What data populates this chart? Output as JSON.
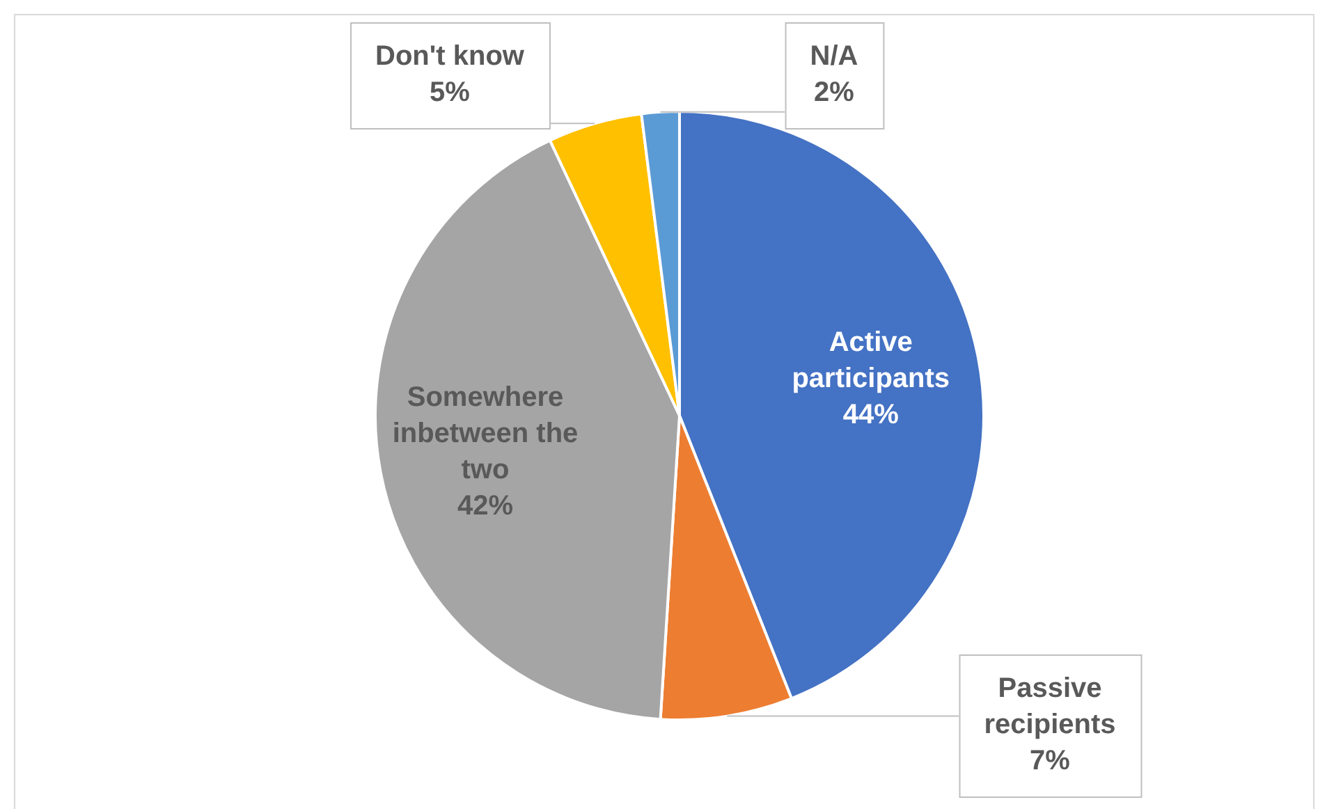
{
  "chart_data": {
    "type": "pie",
    "categories": [
      "Active participants",
      "Passive recipients",
      "Somewhere inbetween the two",
      "Don't know",
      "N/A"
    ],
    "values": [
      44,
      7,
      42,
      5,
      2
    ],
    "colors": [
      "#4472c4",
      "#ed7d31",
      "#a5a5a5",
      "#ffc000",
      "#5b9bd5"
    ],
    "value_labels": [
      "44%",
      "7%",
      "42%",
      "5%",
      "2%"
    ],
    "legend": false
  }
}
